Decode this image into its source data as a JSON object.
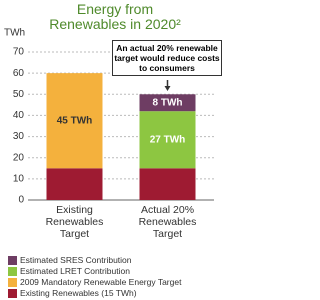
{
  "chart_data": {
    "type": "stacked_bar",
    "title": "Energy from Renewables in 2020²",
    "ylabel": "TWh",
    "categories": [
      "Existing Renewables Target",
      "Actual 20% Renewables Target"
    ],
    "series": [
      {
        "name": "Estimated SRES Contribution",
        "color": "#6e3d63",
        "values": [
          null,
          8
        ],
        "value_labels": [
          null,
          "8 TWh"
        ]
      },
      {
        "name": "Estimated LRET Contribution",
        "color": "#8dc641",
        "values": [
          null,
          27
        ],
        "value_labels": [
          null,
          "27 TWh"
        ]
      },
      {
        "name": "2009 Mandatory Renewable Energy Target",
        "color": "#f4b13d",
        "values": [
          45,
          null
        ],
        "value_labels": [
          "45 TWh",
          null
        ]
      },
      {
        "name": "Existing Renewables (15 TWh)",
        "color": "#9e1b32",
        "values": [
          15,
          15
        ]
      }
    ],
    "annotation": "An actual 20% renewable target would reduce costs to consumers",
    "ylim": [
      0,
      70
    ],
    "yticks": [
      0,
      10,
      20,
      30,
      40,
      50,
      60,
      70
    ],
    "grid": true
  }
}
